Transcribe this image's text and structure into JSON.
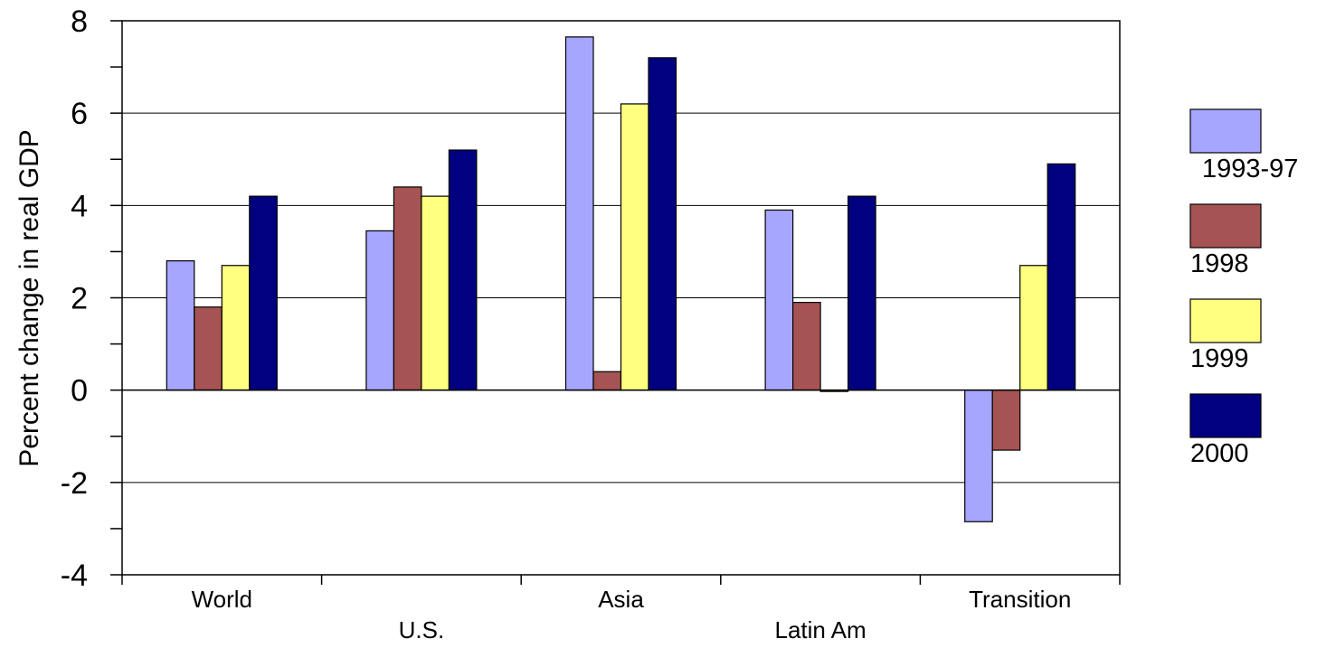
{
  "chart_data": {
    "type": "bar",
    "title": "",
    "ylabel": "Percent change in real GDP",
    "xlabel": "",
    "ylim": [
      -4,
      8
    ],
    "y_major_ticks": [
      -4,
      -2,
      0,
      2,
      4,
      6,
      8
    ],
    "y_tick_labels": [
      "-4",
      "-2",
      "0",
      "2",
      "4",
      "6",
      "8"
    ],
    "categories": [
      "World",
      "U.S.",
      "Asia",
      "Latin Am",
      "Transition"
    ],
    "grid": true,
    "legend_position": "right",
    "series": [
      {
        "name": "1993-97",
        "color": "#a6a6ff",
        "values": [
          2.8,
          3.45,
          7.65,
          3.9,
          -2.85
        ]
      },
      {
        "name": "1998",
        "color": "#a65353",
        "values": [
          1.8,
          4.4,
          0.4,
          1.9,
          -1.3
        ]
      },
      {
        "name": "1999",
        "color": "#ffff80",
        "values": [
          2.7,
          4.2,
          6.2,
          0.0,
          2.7
        ]
      },
      {
        "name": "2000",
        "color": "#000080",
        "values": [
          4.2,
          5.2,
          7.2,
          4.2,
          4.9
        ]
      }
    ]
  }
}
